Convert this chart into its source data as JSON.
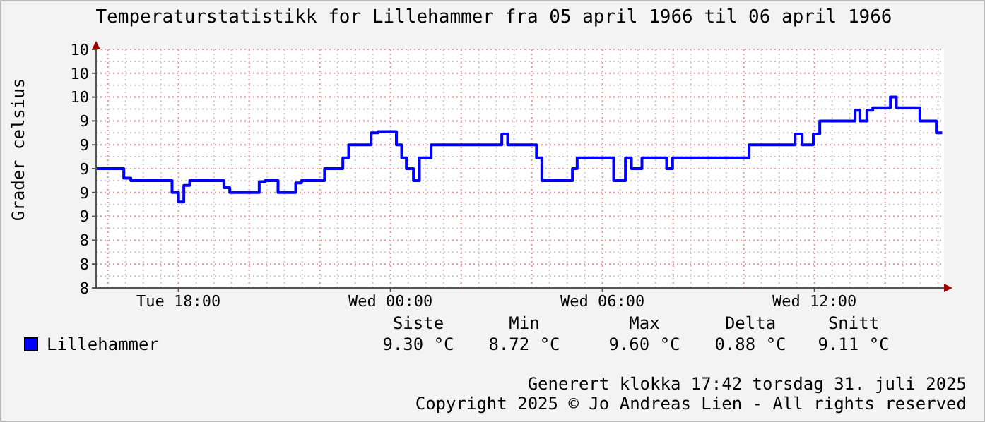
{
  "chart_data": {
    "type": "step",
    "title": "Temperaturstatistikk for Lillehammer fra 05 april 1966 til 06 april 1966",
    "ylabel": "Grader celsius",
    "x": [
      "1966-04-05T15:40",
      "1966-04-05T16:27",
      "1966-04-05T16:39",
      "1966-04-05T17:49",
      "1966-04-05T18:00",
      "1966-04-05T18:09",
      "1966-04-05T18:19",
      "1966-04-05T19:17",
      "1966-04-05T19:27",
      "1966-04-05T20:17",
      "1966-04-05T20:27",
      "1966-04-05T20:49",
      "1966-04-05T21:19",
      "1966-04-05T21:29",
      "1966-04-05T22:08",
      "1966-04-05T22:39",
      "1966-04-05T22:49",
      "1966-04-05T23:27",
      "1966-04-05T23:39",
      "1966-04-06T00:10",
      "1966-04-06T00:19",
      "1966-04-06T00:27",
      "1966-04-06T00:39",
      "1966-04-06T00:49",
      "1966-04-06T01:09",
      "1966-04-06T03:09",
      "1966-04-06T03:19",
      "1966-04-06T04:08",
      "1966-04-06T04:17",
      "1966-04-06T05:09",
      "1966-04-06T05:17",
      "1966-04-06T06:19",
      "1966-04-06T06:39",
      "1966-04-06T06:49",
      "1966-04-06T07:07",
      "1966-04-06T07:49",
      "1966-04-06T07:59",
      "1966-04-06T10:09",
      "1966-04-06T11:27",
      "1966-04-06T11:39",
      "1966-04-06T11:58",
      "1966-04-06T12:09",
      "1966-04-06T13:09",
      "1966-04-06T13:17",
      "1966-04-06T13:29",
      "1966-04-06T13:39",
      "1966-04-06T14:09",
      "1966-04-06T14:19",
      "1966-04-06T14:59",
      "1966-04-06T15:27",
      "1966-04-06T15:37"
    ],
    "series": [
      {
        "name": "Lillehammer",
        "color": "#0000ff",
        "values": [
          9.0,
          8.92,
          8.9,
          8.8,
          8.72,
          8.86,
          8.9,
          8.84,
          8.8,
          8.89,
          8.9,
          8.8,
          8.88,
          8.9,
          9.0,
          9.09,
          9.2,
          9.3,
          9.31,
          9.2,
          9.09,
          9.0,
          8.9,
          9.09,
          9.2,
          9.29,
          9.2,
          9.09,
          8.9,
          9.0,
          9.09,
          8.9,
          9.09,
          9.0,
          9.09,
          9.0,
          9.09,
          9.2,
          9.29,
          9.2,
          9.29,
          9.4,
          9.49,
          9.4,
          9.49,
          9.51,
          9.6,
          9.51,
          9.4,
          9.3,
          9.3
        ]
      }
    ],
    "xlim": [
      "1966-04-05T15:40",
      "1966-04-06T15:40"
    ],
    "xticks": [
      {
        "value": "1966-04-05T18:00",
        "label": "Tue 18:00"
      },
      {
        "value": "1966-04-06T00:00",
        "label": "Wed 00:00"
      },
      {
        "value": "1966-04-06T06:00",
        "label": "Wed 06:00"
      },
      {
        "value": "1966-04-06T12:00",
        "label": "Wed 12:00"
      }
    ],
    "ylim": [
      8,
      10
    ],
    "yticks": [
      {
        "value": 8,
        "label": "8"
      },
      {
        "value": 8.2,
        "label": "8"
      },
      {
        "value": 8.4,
        "label": "8"
      },
      {
        "value": 8.6,
        "label": "9"
      },
      {
        "value": 8.8,
        "label": "9"
      },
      {
        "value": 9,
        "label": "9"
      },
      {
        "value": 9.2,
        "label": "9"
      },
      {
        "value": 9.4,
        "label": "9"
      },
      {
        "value": 9.6,
        "label": "10"
      },
      {
        "value": 9.8,
        "label": "10"
      },
      {
        "value": 10,
        "label": "10"
      }
    ],
    "grid": true,
    "legend": "bottom left",
    "line_style": "solid",
    "annotations": [
      "Siste",
      "Min",
      "Max",
      "Delta",
      "Snitt",
      "9.30 °C",
      "8.72 °C",
      "9.60 °C",
      "0.88 °C",
      "9.11 °C",
      "Generert klokka 17:42 torsdag 31. juli 2025",
      "Copyright 2025 © Jo Andreas Lien - All rights reserved"
    ]
  }
}
